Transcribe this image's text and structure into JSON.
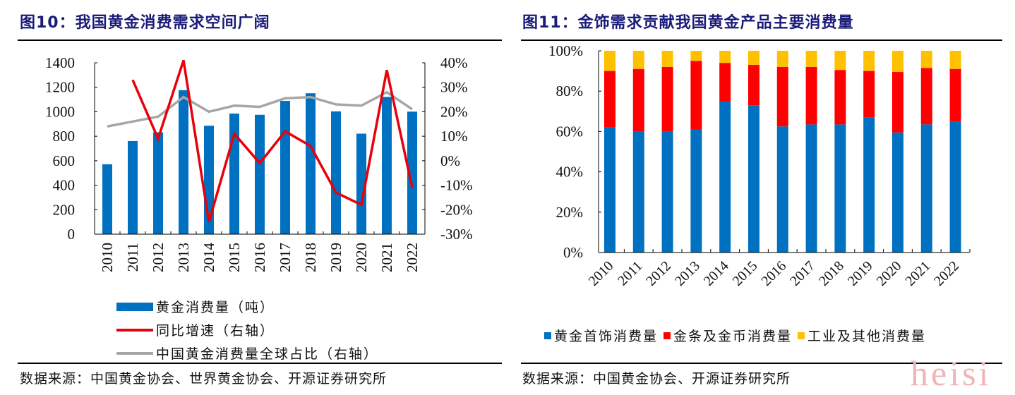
{
  "chart_data": [
    {
      "type": "bar",
      "title": "图10：我国黄金消费需求空间广阔",
      "xlabel": "",
      "ylabel": "",
      "categories": [
        "2010",
        "2011",
        "2012",
        "2013",
        "2014",
        "2015",
        "2016",
        "2017",
        "2018",
        "2019",
        "2020",
        "2021",
        "2022"
      ],
      "ylim": [
        0,
        1400
      ],
      "yticks": [
        "0",
        "200",
        "400",
        "600",
        "800",
        "1000",
        "1200",
        "1400"
      ],
      "y2lim": [
        -30,
        40
      ],
      "y2ticks": [
        "-30%",
        "-20%",
        "-10%",
        "0%",
        "10%",
        "20%",
        "30%",
        "40%"
      ],
      "series": [
        {
          "name": "黄金消费量（吨）",
          "type": "bar",
          "axis": "left",
          "color": "#0070c0",
          "values": [
            571,
            761,
            832,
            1176,
            886,
            985,
            975,
            1089,
            1151,
            1003,
            821,
            1121,
            1001
          ]
        },
        {
          "name": "同比增速（右轴）",
          "type": "line",
          "axis": "right",
          "color": "#e8000b",
          "values": [
            null,
            33,
            9,
            41,
            -25,
            11,
            -1,
            12,
            6,
            -13,
            -18,
            37,
            -11
          ]
        },
        {
          "name": "中国黄金消费量全球占比（右轴）",
          "type": "line",
          "axis": "right",
          "color": "#a6a6a6",
          "values": [
            14,
            16,
            18,
            26,
            20,
            22.5,
            22,
            25.5,
            26,
            23,
            22.5,
            28,
            21
          ]
        }
      ],
      "legend": "bottom",
      "grid": false
    },
    {
      "type": "bar",
      "stacked": true,
      "title": "图11：金饰需求贡献我国黄金产品主要消费量",
      "xlabel": "",
      "ylabel": "",
      "categories": [
        "2010",
        "2011",
        "2012",
        "2013",
        "2014",
        "2015",
        "2016",
        "2017",
        "2018",
        "2019",
        "2020",
        "2021",
        "2022"
      ],
      "ylim": [
        0,
        100
      ],
      "yticks": [
        "0%",
        "20%",
        "40%",
        "60%",
        "80%",
        "100%"
      ],
      "series": [
        {
          "name": "黄金首饰消费量",
          "color": "#0070c0",
          "values": [
            62,
            60,
            60,
            61,
            75,
            73,
            62.5,
            63.5,
            63.5,
            67,
            59.5,
            63.5,
            65
          ]
        },
        {
          "name": "金条及金币消费量",
          "color": "#ff0000",
          "values": [
            28,
            31,
            32,
            34,
            19,
            20,
            29.5,
            28.5,
            27,
            23,
            30,
            28,
            26
          ]
        },
        {
          "name": "工业及其他消费量",
          "color": "#ffc000",
          "values": [
            10,
            9,
            8,
            5,
            6,
            7,
            8,
            8,
            9.5,
            10,
            10.5,
            8.5,
            9
          ]
        }
      ],
      "legend": "bottom",
      "grid": false
    }
  ],
  "left_panel": {
    "title": "图10：我国黄金消费需求空间广阔",
    "source": "数据来源：中国黄金协会、世界黄金协会、开源证券研究所"
  },
  "right_panel": {
    "title": "图11：金饰需求贡献我国黄金产品主要消费量",
    "source": "数据来源：中国黄金协会、开源证券研究所"
  },
  "watermark": "heisi"
}
